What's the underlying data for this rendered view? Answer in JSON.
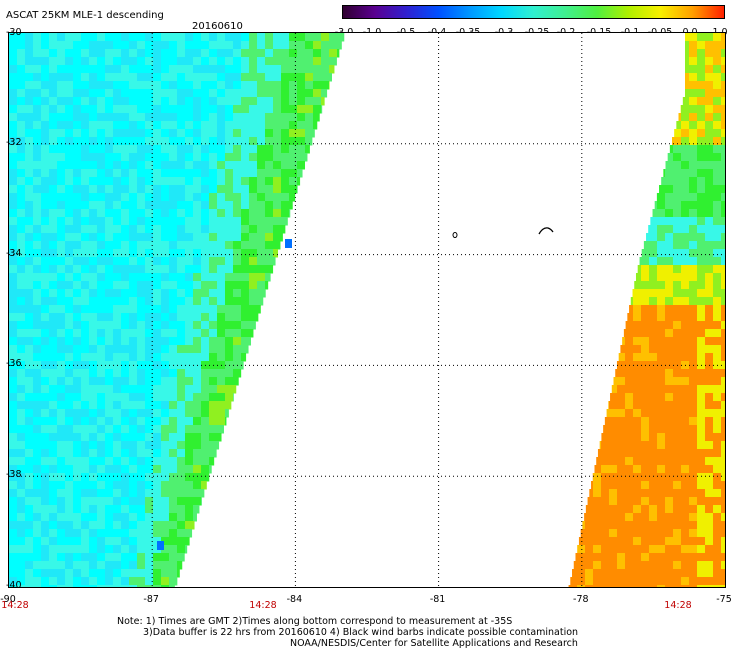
{
  "header": {
    "title": "ASCAT 25KM MLE-1 descending",
    "date": "20160610"
  },
  "colorbar": {
    "ticks": [
      "-3.0",
      "-1.0",
      "-0.5",
      "-0.4",
      "-0.35",
      "-0.3",
      "-0.25",
      "-0.2",
      "-0.15",
      "-0.1",
      "-0.05",
      "0.0",
      "1.0"
    ],
    "colors": [
      "#300030",
      "#5a0090",
      "#3020d0",
      "#0050ff",
      "#0098ff",
      "#00d8ff",
      "#30f0d0",
      "#40f090",
      "#50f040",
      "#b0f000",
      "#f8f000",
      "#ffa000",
      "#ff2000"
    ]
  },
  "map": {
    "lat_labels": [
      "-30",
      "-32",
      "-34",
      "-36",
      "-38",
      "-40"
    ],
    "lon_labels": [
      "-90",
      "-87",
      "-84",
      "-81",
      "-78",
      "-75"
    ],
    "time_labels": [
      "14:28",
      "14:28",
      "14:28"
    ],
    "swath_colors": {
      "cyan": "#00ffff",
      "aqua_light": "#38f8e8",
      "aqua_mid": "#20e8f8",
      "blue_spot": "#0070ff",
      "green_light": "#50f070",
      "green": "#30f030",
      "green_yellow": "#90f020",
      "yellow": "#f0f000",
      "orange_yellow": "#ffc000",
      "orange": "#ff8c00"
    }
  },
  "footer": {
    "note_line1": "Note: 1) Times are GMT 2)Times along bottom correspond to measurement at -35S",
    "note_line2": "3)Data buffer is 22 hrs from 20160610 4) Black wind barbs indicate possible contamination",
    "credit": "NOAA/NESDIS/Center for Satellite Applications and Research"
  }
}
